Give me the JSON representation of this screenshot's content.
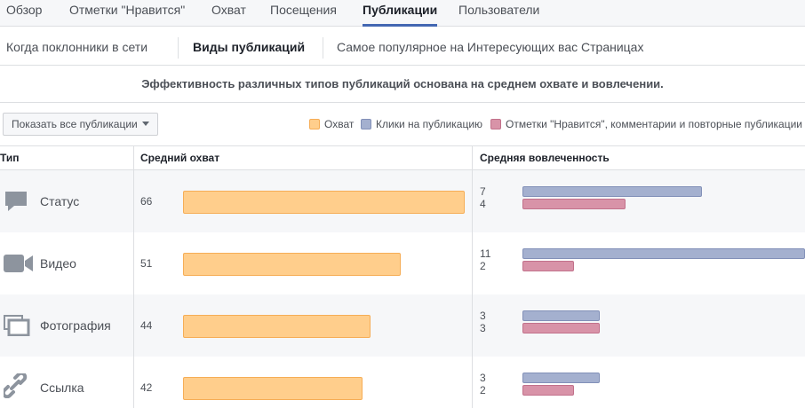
{
  "nav": {
    "tabs": [
      {
        "label": "Обзор"
      },
      {
        "label": "Отметки \"Нравится\""
      },
      {
        "label": "Охват"
      },
      {
        "label": "Посещения"
      },
      {
        "label": "Публикации",
        "active": true
      },
      {
        "label": "Пользователи"
      }
    ]
  },
  "subnav": {
    "items": [
      {
        "label": "Когда поклонники в сети"
      },
      {
        "label": "Виды публикаций",
        "active": true
      },
      {
        "label": "Самое популярное на Интересующих вас Страницах"
      }
    ]
  },
  "description": "Эффективность различных типов публикаций основана на среднем охвате и вовлечении.",
  "filter": {
    "label": "Показать все публикации"
  },
  "colors": {
    "reach": "#ffce8c",
    "clicks": "#a4b0cf",
    "likes": "#d893a8"
  },
  "chart_data": {
    "type": "bar",
    "columns": {
      "type": "Тип",
      "reach": "Средний охват",
      "engagement": "Средняя вовлеченность"
    },
    "categories": [
      "Статус",
      "Видео",
      "Фотография",
      "Ссылка"
    ],
    "category_icons": [
      "speech-bubble-icon",
      "video-camera-icon",
      "photo-stack-icon",
      "link-chain-icon"
    ],
    "legend": [
      "Охват",
      "Клики на публикацию",
      "Отметки \"Нравится\", комментарии и повторные публикации"
    ],
    "series": [
      {
        "name": "Охват",
        "values": [
          66,
          51,
          44,
          42
        ]
      },
      {
        "name": "Клики на публикацию",
        "values": [
          7,
          11,
          3,
          3
        ]
      },
      {
        "name": "Отметки \"Нравится\", комментарии и повторные публикации",
        "values": [
          4,
          2,
          3,
          2
        ]
      }
    ]
  }
}
